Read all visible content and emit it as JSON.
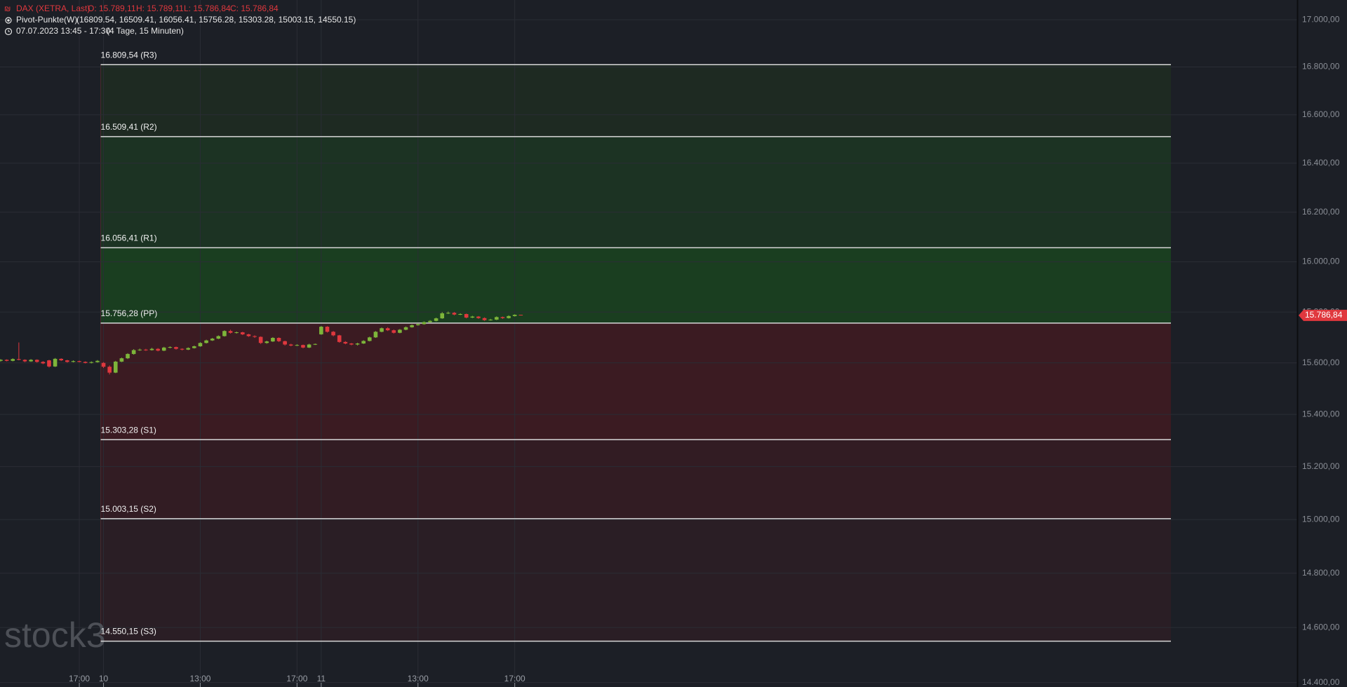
{
  "chart_data": {
    "type": "candlestick",
    "header": {
      "symbol": "DAX (XETRA, Last)",
      "open": "O: 15.789,11",
      "high": "H: 15.789,11",
      "low": "L: 15.786,84",
      "close": "C: 15.786,84",
      "indicator": "Pivot-Punkte(W)",
      "indicator_values": "(16809.54,  16509.41,  16056.41,  15756.28,  15303.28,  15003.15,  14550.15)",
      "range": "07.07.2023 13:45 - 17:30",
      "range_info": "(4 Tage, 15 Minuten)"
    },
    "watermark": "stock3",
    "log_scale": true,
    "up_color": "#7db53a",
    "down_color": "#e0383e",
    "categories": [
      null,
      null,
      null,
      null,
      null,
      null,
      null,
      null,
      null,
      null,
      null,
      null,
      null,
      "17:00",
      null,
      null,
      null,
      "10",
      null,
      null,
      null,
      null,
      null,
      null,
      null,
      null,
      null,
      null,
      null,
      null,
      null,
      null,
      null,
      "13:00",
      null,
      null,
      null,
      null,
      null,
      null,
      null,
      null,
      null,
      null,
      null,
      null,
      null,
      null,
      null,
      "17:00",
      null,
      null,
      null,
      "11",
      null,
      null,
      null,
      null,
      null,
      null,
      null,
      null,
      null,
      null,
      null,
      null,
      null,
      null,
      null,
      "13:00",
      null,
      null,
      null,
      null,
      null,
      null,
      null,
      null,
      null,
      null,
      null,
      null,
      null,
      null,
      null,
      "17:00",
      null
    ],
    "open": [
      15608,
      15612,
      15608,
      15615,
      15612,
      15606,
      15612,
      15604,
      15610,
      15586,
      15616,
      15610,
      15604,
      15607,
      15604,
      15600,
      15603,
      15600,
      15585,
      15562,
      15605,
      15618,
      15635,
      15650,
      15652,
      15650,
      15655,
      15648,
      15660,
      15662,
      15655,
      15652,
      15658,
      15665,
      15678,
      15688,
      15695,
      15705,
      15725,
      15718,
      15720,
      15712,
      15705,
      15702,
      15678,
      15684,
      15698,
      15685,
      15672,
      15668,
      15670,
      15660,
      15672,
      15712,
      15742,
      15722,
      15708,
      15682,
      15676,
      15672,
      15676,
      15686,
      15700,
      15722,
      15736,
      15728,
      15718,
      15730,
      15740,
      15748,
      15752,
      15760,
      15765,
      15775,
      15795,
      15797,
      15790,
      15792,
      15778,
      15782,
      15776,
      15768,
      15770,
      15780,
      15776,
      15784,
      15789.11
    ],
    "high": [
      15615,
      15614,
      15618,
      15680,
      15614,
      15615,
      15614,
      15607,
      15612,
      15619,
      15618,
      15612,
      15610,
      15609,
      15606,
      15606,
      15611,
      15603,
      15590,
      15608,
      15621,
      15638,
      15654,
      15656,
      15655,
      15659,
      15658,
      15663,
      15665,
      15664,
      15657,
      15661,
      15668,
      15681,
      15691,
      15698,
      15708,
      15728,
      15730,
      15723,
      15722,
      15714,
      15708,
      15704,
      15687,
      15701,
      15700,
      15687,
      15675,
      15673,
      15672,
      15675,
      15676,
      15745,
      15744,
      15725,
      15710,
      15685,
      15678,
      15679,
      15689,
      15703,
      15725,
      15739,
      15740,
      15731,
      15733,
      15743,
      15751,
      15755,
      15763,
      15768,
      15778,
      15800,
      15802,
      15800,
      15795,
      15794,
      15785,
      15784,
      15779,
      15773,
      15783,
      15782,
      15787,
      15791,
      15789.11
    ],
    "low": [
      15605,
      15606,
      15606,
      15610,
      15603,
      15604,
      15601,
      15595,
      15582,
      15584,
      15607,
      15601,
      15602,
      15602,
      15598,
      15598,
      15601,
      15580,
      15555,
      15560,
      15603,
      15615,
      15632,
      15647,
      15647,
      15648,
      15645,
      15646,
      15657,
      15652,
      15649,
      15650,
      15656,
      15663,
      15676,
      15686,
      15693,
      15703,
      15715,
      15715,
      15709,
      15702,
      15698,
      15674,
      15675,
      15682,
      15682,
      15668,
      15665,
      15666,
      15657,
      15658,
      15670,
      15710,
      15719,
      15704,
      15679,
      15673,
      15669,
      15668,
      15674,
      15684,
      15698,
      15720,
      15725,
      15715,
      15716,
      15728,
      15738,
      15746,
      15750,
      15758,
      15763,
      15773,
      15792,
      15787,
      15788,
      15775,
      15776,
      15773,
      15765,
      15766,
      15768,
      15773,
      15774,
      15782,
      15786.84
    ],
    "close": [
      15612,
      15608,
      15615,
      15612,
      15606,
      15612,
      15604,
      15598,
      15586,
      15616,
      15610,
      15604,
      15607,
      15604,
      15600,
      15603,
      15608,
      15585,
      15562,
      15605,
      15618,
      15635,
      15650,
      15652,
      15650,
      15655,
      15648,
      15660,
      15662,
      15655,
      15652,
      15658,
      15665,
      15678,
      15688,
      15695,
      15705,
      15725,
      15718,
      15720,
      15712,
      15705,
      15702,
      15678,
      15684,
      15698,
      15685,
      15672,
      15668,
      15670,
      15660,
      15672,
      15674,
      15742,
      15722,
      15708,
      15682,
      15676,
      15672,
      15676,
      15686,
      15700,
      15722,
      15736,
      15728,
      15718,
      15730,
      15740,
      15748,
      15752,
      15760,
      15765,
      15775,
      15795,
      15797,
      15790,
      15792,
      15778,
      15782,
      15776,
      15768,
      15770,
      15780,
      15776,
      15784,
      15789,
      15786.84
    ],
    "pivots": [
      {
        "value": 16809.54,
        "label": "16.809,54 (R3)"
      },
      {
        "value": 16509.41,
        "label": "16.509,41 (R2)"
      },
      {
        "value": 16056.41,
        "label": "16.056,41 (R1)"
      },
      {
        "value": 15756.28,
        "label": "15.756,28 (PP)"
      },
      {
        "value": 15303.28,
        "label": "15.303,28 (S1)"
      },
      {
        "value": 15003.15,
        "label": "15.003,15 (S2)"
      },
      {
        "value": 14550.15,
        "label": "14.550,15 (S3)"
      }
    ],
    "zone_colors": [
      "#1e2a22",
      "#1c3323",
      "#1a3e20",
      "#3b1b22",
      "#321c23",
      "#2a1e25"
    ],
    "last_price": {
      "value": 15786.84,
      "label": "15.786,84"
    },
    "ylim": [
      14384,
      17084
    ],
    "yticks": [
      {
        "value": 14400,
        "label": "14.400,00"
      },
      {
        "value": 14600,
        "label": "14.600,00"
      },
      {
        "value": 14800,
        "label": "14.800,00"
      },
      {
        "value": 15000,
        "label": "15.000,00"
      },
      {
        "value": 15200,
        "label": "15.200,00"
      },
      {
        "value": 15400,
        "label": "15.400,00"
      },
      {
        "value": 15600,
        "label": "15.600,00"
      },
      {
        "value": 15800,
        "label": "15.800,00"
      },
      {
        "value": 16000,
        "label": "16.000,00"
      },
      {
        "value": 16200,
        "label": "16.200,00"
      },
      {
        "value": 16400,
        "label": "16.400,00"
      },
      {
        "value": 16600,
        "label": "16.600,00"
      },
      {
        "value": 16800,
        "label": "16.800,00"
      },
      {
        "value": 17000,
        "label": "17.000,00"
      }
    ],
    "grid": true
  }
}
